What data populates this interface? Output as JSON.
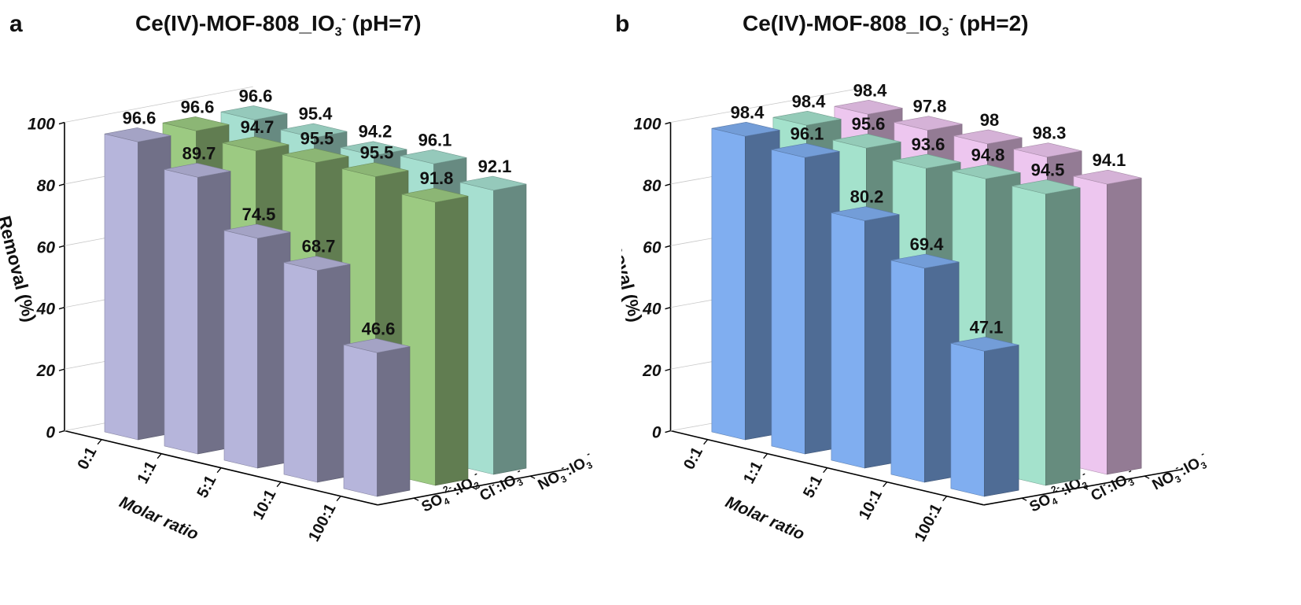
{
  "chart_data": [
    {
      "type": "bar3d",
      "panel_label": "a",
      "title": {
        "main": "Ce(IV)-MOF-808_IO",
        "sub": "3",
        "sup": "-",
        "tail": " (pH=7)"
      },
      "zlabel": "Removal (%)",
      "xlabel": "Molar ratio",
      "zlim": [
        0,
        100
      ],
      "zticks": [
        "0",
        "20",
        "40",
        "60",
        "80",
        "100"
      ],
      "categories": [
        "0:1",
        "1:1",
        "5:1",
        "10:1",
        "100:1"
      ],
      "series": [
        {
          "name": "SO4 2-:IO3 -",
          "label_main": "SO",
          "label_sub": "4",
          "label_sup": "2-",
          "label_tail": ":IO",
          "label_sub2": "3",
          "label_sup2": "-",
          "values": [
            96.6,
            89.7,
            74.5,
            68.7,
            46.6
          ],
          "color": "#b6b5db"
        },
        {
          "name": "Cl-:IO3 -",
          "label_main": "Cl",
          "label_sub": "",
          "label_sup": "-",
          "label_tail": ":IO",
          "label_sub2": "3",
          "label_sup2": "-",
          "values": [
            96.6,
            94.7,
            95.5,
            95.5,
            91.8
          ],
          "color": "#9cca82"
        },
        {
          "name": "NO3 -:IO3 -",
          "label_main": "NO",
          "label_sub": "3",
          "label_sup": "-",
          "label_tail": ":IO",
          "label_sub2": "3",
          "label_sup2": "-",
          "values": [
            96.6,
            95.4,
            94.2,
            96.1,
            92.1
          ],
          "color": "#a6dfd0"
        }
      ]
    },
    {
      "type": "bar3d",
      "panel_label": "b",
      "title": {
        "main": "Ce(IV)-MOF-808_IO",
        "sub": "3",
        "sup": "-",
        "tail": " (pH=2)"
      },
      "zlabel": "Removal (%)",
      "xlabel": "Molar ratio",
      "zlim": [
        0,
        100
      ],
      "zticks": [
        "0",
        "20",
        "40",
        "60",
        "80",
        "100"
      ],
      "categories": [
        "0:1",
        "1:1",
        "5:1",
        "10:1",
        "100:1"
      ],
      "series": [
        {
          "name": "SO4 2-:IO3 -",
          "label_main": "SO",
          "label_sub": "4",
          "label_sup": "2-",
          "label_tail": ":IO",
          "label_sub2": "3",
          "label_sup2": "-",
          "values": [
            98.4,
            96.1,
            80.2,
            69.4,
            47.1
          ],
          "color": "#80aef0"
        },
        {
          "name": "Cl-:IO3 -",
          "label_main": "Cl",
          "label_sub": "",
          "label_sup": "-",
          "label_tail": ":IO",
          "label_sub2": "3",
          "label_sup2": "-",
          "values": [
            98.4,
            95.6,
            93.6,
            94.8,
            94.5
          ],
          "color": "#a4e2cc"
        },
        {
          "name": "NO3 -:IO3 -",
          "label_main": "NO",
          "label_sub": "3",
          "label_sup": "-",
          "label_tail": ":IO",
          "label_sub2": "3",
          "label_sup2": "-",
          "values": [
            98.4,
            97.8,
            98,
            98.3,
            94.1
          ],
          "color": "#edc6ef"
        }
      ]
    }
  ]
}
